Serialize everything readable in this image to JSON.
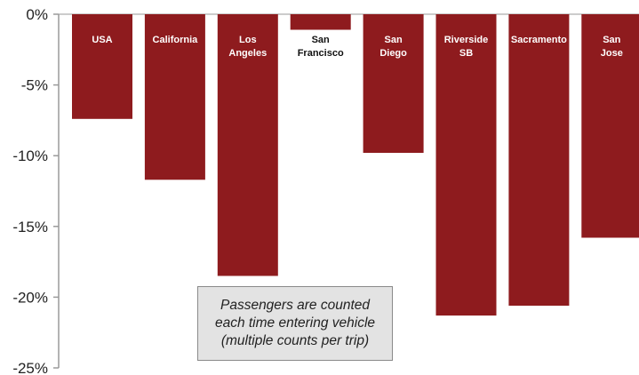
{
  "chart_data": {
    "type": "bar",
    "categories": [
      "USA",
      "California",
      "Los Angeles",
      "San Francisco",
      "San Diego",
      "Riverside SB",
      "Sacramento",
      "San Jose"
    ],
    "label_lines": [
      [
        "USA"
      ],
      [
        "California"
      ],
      [
        "Los",
        "Angeles"
      ],
      [
        "San",
        "Francisco"
      ],
      [
        "San",
        "Diego"
      ],
      [
        "Riverside",
        "SB"
      ],
      [
        "Sacramento"
      ],
      [
        "San",
        "Jose"
      ]
    ],
    "values": [
      -7.4,
      -11.7,
      -18.5,
      -1.1,
      -9.8,
      -21.3,
      -20.6,
      -15.8
    ],
    "ylim": [
      -25,
      0
    ],
    "yticks": [
      0,
      -5,
      -10,
      -15,
      -20,
      -25
    ],
    "ytick_labels": [
      "0%",
      "-5%",
      "-10%",
      "-15%",
      "-20%",
      "-25%"
    ],
    "title": "",
    "xlabel": "",
    "ylabel": "",
    "bar_color": "#8e1b1e",
    "label_color": "#ffffff",
    "short_bar_label_color": "#111111",
    "grid": false
  },
  "annotation": {
    "lines": [
      "Passengers are counted",
      "each time entering vehicle",
      "(multiple counts per trip)"
    ]
  }
}
